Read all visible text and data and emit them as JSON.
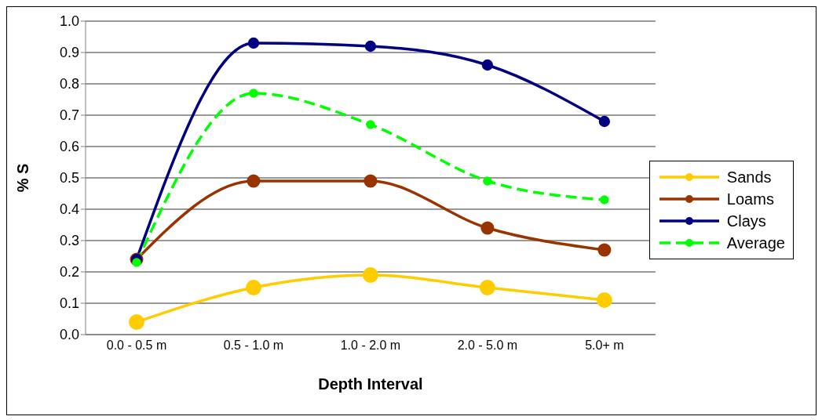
{
  "chart_data": {
    "type": "line",
    "xlabel": "Depth Interval",
    "ylabel": "% S",
    "categories": [
      "0.0 - 0.5 m",
      "0.5 - 1.0 m",
      "1.0 - 2.0 m",
      "2.0 - 5.0 m",
      "5.0+ m"
    ],
    "series": [
      {
        "name": "Sands",
        "color": "#ffcc00",
        "values": [
          0.04,
          0.15,
          0.19,
          0.15,
          0.11
        ]
      },
      {
        "name": "Loams",
        "color": "#993300",
        "values": [
          0.24,
          0.49,
          0.49,
          0.34,
          0.27
        ]
      },
      {
        "name": "Clays",
        "color": "#000080",
        "values": [
          0.24,
          0.93,
          0.92,
          0.86,
          0.68
        ]
      },
      {
        "name": "Average",
        "color": "#00ff00",
        "values": [
          0.23,
          0.77,
          0.67,
          0.49,
          0.43
        ],
        "line_style": "dashed"
      }
    ],
    "ylim": [
      0,
      1
    ],
    "yticks": [
      {
        "value": 0,
        "label": "0.0"
      },
      {
        "value": 0.1,
        "label": "0.1"
      },
      {
        "value": 0.2,
        "label": "0.2"
      },
      {
        "value": 0.3,
        "label": "0.3"
      },
      {
        "value": 0.4,
        "label": "0.4"
      },
      {
        "value": 0.5,
        "label": "0.5"
      },
      {
        "value": 0.6,
        "label": "0.6"
      },
      {
        "value": 0.7,
        "label": "0.7"
      },
      {
        "value": 0.8,
        "label": "0.8"
      },
      {
        "value": 0.9,
        "label": "0.9"
      },
      {
        "value": 1,
        "label": "1.0"
      }
    ],
    "grid": "y",
    "legend": "right",
    "marker": "circle",
    "line_style": "solid"
  }
}
